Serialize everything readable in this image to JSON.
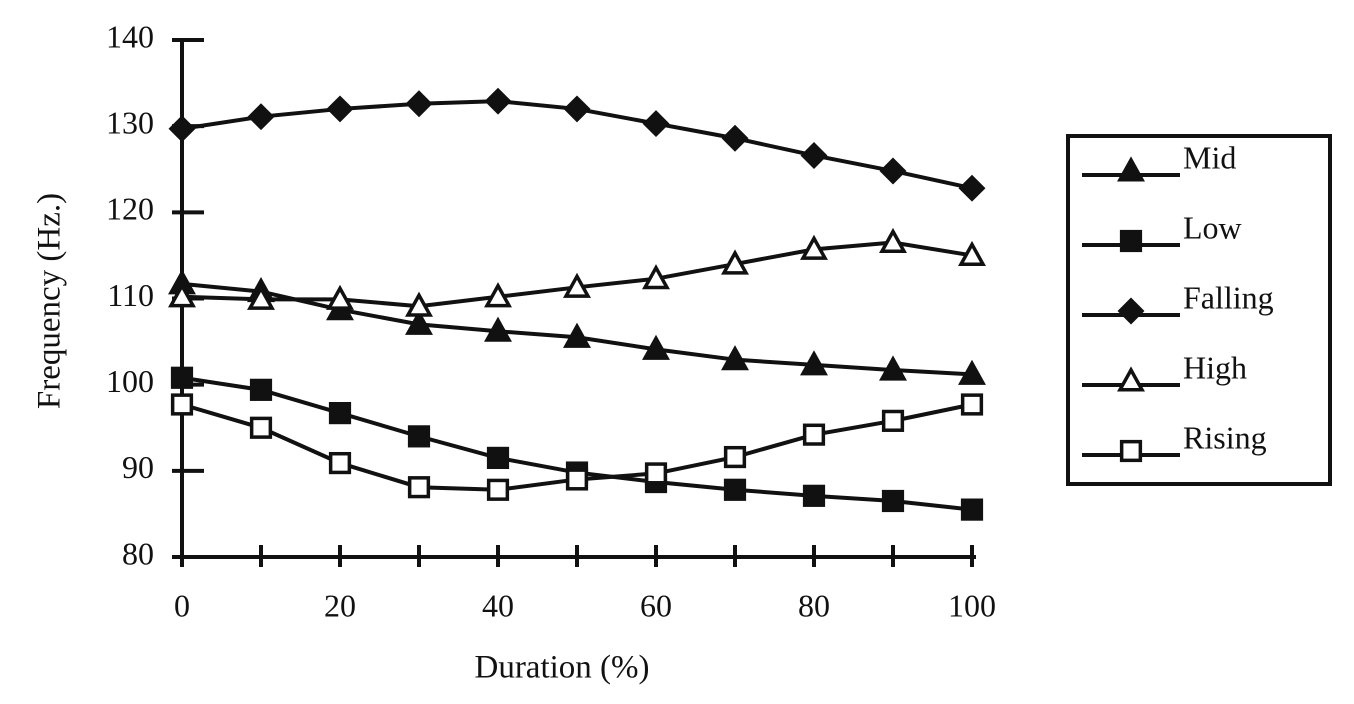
{
  "chart_data": {
    "type": "line",
    "x_label": "Duration (%)",
    "y_label": "Frequency (Hz.)",
    "x": [
      0,
      10,
      20,
      30,
      40,
      50,
      60,
      70,
      80,
      90,
      100
    ],
    "xlim": [
      0,
      100
    ],
    "xticks": [
      0,
      20,
      40,
      60,
      80,
      100
    ],
    "x_minor_ticks": [
      10,
      30,
      50,
      70,
      90
    ],
    "ylim": [
      80,
      140
    ],
    "yticks": [
      80,
      90,
      100,
      110,
      120,
      130,
      140
    ],
    "grid": false,
    "legend": "right",
    "series": [
      {
        "name": "Mid",
        "color": "#111111",
        "marker": "triangle-filled",
        "values": [
          111.7,
          110.8,
          108.7,
          107.0,
          106.2,
          105.5,
          104.1,
          102.9,
          102.3,
          101.7,
          101.2
        ]
      },
      {
        "name": "Low",
        "color": "#111111",
        "marker": "square-filled",
        "values": [
          100.8,
          99.4,
          96.7,
          94.0,
          91.5,
          89.8,
          88.7,
          87.8,
          87.1,
          86.5,
          85.5
        ]
      },
      {
        "name": "Falling",
        "color": "#111111",
        "marker": "diamond-filled",
        "values": [
          129.7,
          131.1,
          132.0,
          132.6,
          132.9,
          132.0,
          130.3,
          128.6,
          126.6,
          124.8,
          122.8
        ]
      },
      {
        "name": "High",
        "color": "#111111",
        "marker": "triangle-open",
        "values": [
          110.2,
          109.9,
          109.9,
          109.1,
          110.2,
          111.3,
          112.3,
          114.0,
          115.7,
          116.5,
          115.0
        ]
      },
      {
        "name": "Rising",
        "color": "#111111",
        "marker": "square-open",
        "values": [
          97.7,
          95.0,
          90.9,
          88.1,
          87.8,
          89.0,
          89.7,
          91.6,
          94.2,
          95.8,
          97.7
        ]
      }
    ]
  }
}
